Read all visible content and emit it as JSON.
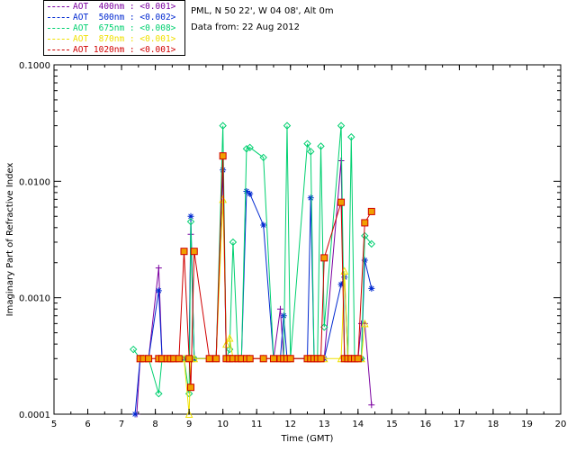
{
  "legend": [
    {
      "label": "AOT  400nm : <0.001>",
      "color": "#7b00a0"
    },
    {
      "label": "AOT  500nm : <0.002>",
      "color": "#0028d0"
    },
    {
      "label": "AOT  675nm : <0.008>",
      "color": "#00d070"
    },
    {
      "label": "AOT  870nm : <0.001>",
      "color": "#f0e000"
    },
    {
      "label": "AOT 1020nm : <0.001>",
      "color": "#d00000"
    }
  ],
  "info": {
    "site": "PML, N 50 22', W 04 08', Alt 0m",
    "date": "Data from: 22 Aug 2012"
  },
  "chart_data": {
    "type": "line",
    "xlabel": "Time (GMT)",
    "ylabel": "Imaginary Part of Refractive Index",
    "xlim": [
      5,
      20
    ],
    "ylim": [
      0.0001,
      0.1
    ],
    "yscale": "log",
    "xticks": [
      "5",
      "6",
      "7",
      "8",
      "9",
      "10",
      "11",
      "12",
      "13",
      "14",
      "15",
      "16",
      "17",
      "18",
      "19",
      "20"
    ],
    "yticks": [
      "0.0001",
      "0.0010",
      "0.0100",
      "0.1000"
    ],
    "series": [
      {
        "name": "AOT 400nm",
        "color": "#7b00a0",
        "marker": "plus",
        "x": [
          7.45,
          7.55,
          7.65,
          7.8,
          8.1,
          8.2,
          8.35,
          8.45,
          8.55,
          8.7,
          8.85,
          9.0,
          9.05,
          9.15,
          9.6,
          9.8,
          10.0,
          10.1,
          10.2,
          10.3,
          10.45,
          10.55,
          10.7,
          10.8,
          11.2,
          11.5,
          11.7,
          11.8,
          11.9,
          12.0,
          12.5,
          12.6,
          12.7,
          12.8,
          12.9,
          13.0,
          13.5,
          13.6,
          13.7,
          13.8,
          13.9,
          14.0,
          14.1,
          14.2,
          14.4
        ],
        "y": [
          0.0001,
          0.0003,
          0.0003,
          0.0003,
          0.0018,
          0.0003,
          0.0003,
          0.0003,
          0.0003,
          0.0003,
          0.0003,
          0.0003,
          0.0035,
          0.0003,
          0.0003,
          0.0003,
          0.016,
          0.0003,
          0.0003,
          0.0003,
          0.0003,
          0.0003,
          0.0003,
          0.0003,
          0.0003,
          0.0003,
          0.0008,
          0.0003,
          0.0003,
          0.0003,
          0.0003,
          0.0003,
          0.0003,
          0.0003,
          0.0003,
          0.0003,
          0.015,
          0.0003,
          0.0003,
          0.0003,
          0.0003,
          0.0003,
          0.0006,
          0.0006,
          0.00012
        ]
      },
      {
        "name": "AOT 500nm",
        "color": "#0028d0",
        "marker": "asterisk",
        "x": [
          7.4,
          7.55,
          7.65,
          7.8,
          8.1,
          8.2,
          8.35,
          8.45,
          8.55,
          8.7,
          8.85,
          9.0,
          9.05,
          9.15,
          9.6,
          9.8,
          10.0,
          10.1,
          10.2,
          10.3,
          10.45,
          10.55,
          10.7,
          10.8,
          11.2,
          11.5,
          11.7,
          11.8,
          11.9,
          12.0,
          12.5,
          12.6,
          12.7,
          12.8,
          12.9,
          13.0,
          13.5,
          13.6,
          13.7,
          13.8,
          13.9,
          14.0,
          14.1,
          14.2,
          14.4
        ],
        "y": [
          0.0001,
          0.0003,
          0.0003,
          0.0003,
          0.00115,
          0.0003,
          0.0003,
          0.0003,
          0.0003,
          0.0003,
          0.0003,
          0.0003,
          0.005,
          0.0003,
          0.0003,
          0.0003,
          0.0125,
          0.0003,
          0.0003,
          0.0003,
          0.0003,
          0.0003,
          0.0082,
          0.0078,
          0.0042,
          0.0003,
          0.0003,
          0.0007,
          0.0003,
          0.0003,
          0.0003,
          0.0072,
          0.0003,
          0.0003,
          0.0003,
          0.0003,
          0.0013,
          0.0015,
          0.0003,
          0.0003,
          0.0003,
          0.0003,
          0.0003,
          0.0021,
          0.0012
        ]
      },
      {
        "name": "AOT 675nm",
        "color": "#00d070",
        "marker": "diamond",
        "x": [
          7.35,
          7.55,
          7.65,
          7.8,
          8.1,
          8.2,
          8.35,
          8.45,
          8.55,
          8.7,
          8.85,
          9.0,
          9.05,
          9.15,
          9.6,
          9.8,
          10.0,
          10.1,
          10.2,
          10.3,
          10.45,
          10.55,
          10.7,
          10.8,
          11.2,
          11.5,
          11.7,
          11.8,
          11.9,
          12.0,
          12.5,
          12.6,
          12.7,
          12.8,
          12.9,
          13.0,
          13.5,
          13.6,
          13.7,
          13.8,
          13.9,
          14.0,
          14.1,
          14.2,
          14.4
        ],
        "y": [
          0.00036,
          0.0003,
          0.0003,
          0.0003,
          0.00015,
          0.0003,
          0.0003,
          0.0003,
          0.0003,
          0.0003,
          0.0003,
          0.00015,
          0.0045,
          0.0003,
          0.0003,
          0.0003,
          0.03,
          0.0003,
          0.00036,
          0.003,
          0.0003,
          0.0003,
          0.019,
          0.0195,
          0.016,
          0.0003,
          0.0003,
          0.0003,
          0.03,
          0.0003,
          0.021,
          0.018,
          0.0003,
          0.0003,
          0.02,
          0.00056,
          0.03,
          0.0003,
          0.0003,
          0.024,
          0.0003,
          0.0003,
          0.0003,
          0.0034,
          0.0029
        ]
      },
      {
        "name": "AOT 870nm",
        "color": "#f0e000",
        "marker": "triangle",
        "x": [
          7.55,
          7.65,
          7.8,
          8.1,
          8.2,
          8.35,
          8.45,
          8.55,
          8.7,
          8.85,
          9.0,
          9.05,
          9.15,
          9.6,
          9.8,
          10.0,
          10.1,
          10.2,
          10.3,
          10.45,
          10.55,
          10.7,
          10.8,
          11.2,
          11.5,
          11.7,
          11.8,
          11.9,
          12.0,
          12.5,
          12.6,
          12.7,
          12.8,
          12.9,
          13.0,
          13.5,
          13.6,
          13.7,
          13.8,
          13.9,
          14.0,
          14.1,
          14.2
        ],
        "y": [
          0.0003,
          0.0003,
          0.0003,
          0.0003,
          0.0003,
          0.0003,
          0.0003,
          0.0003,
          0.0003,
          0.0003,
          0.0001,
          0.0003,
          0.0003,
          0.0003,
          0.0003,
          0.007,
          0.0004,
          0.00045,
          0.0003,
          0.0003,
          0.0003,
          0.0003,
          0.0003,
          0.0003,
          0.0003,
          0.0003,
          0.0003,
          0.0003,
          0.0003,
          0.0003,
          0.0003,
          0.0003,
          0.0003,
          0.0003,
          0.0003,
          0.0003,
          0.0017,
          0.0003,
          0.0003,
          0.0003,
          0.0003,
          0.0003,
          0.0006
        ]
      },
      {
        "name": "AOT 1020nm",
        "color": "#d00000",
        "marker": "square",
        "x": [
          7.55,
          7.65,
          7.8,
          8.1,
          8.2,
          8.35,
          8.45,
          8.55,
          8.7,
          8.85,
          9.0,
          9.05,
          9.15,
          9.6,
          9.8,
          10.0,
          10.1,
          10.2,
          10.3,
          10.45,
          10.55,
          10.7,
          10.8,
          11.2,
          11.5,
          11.7,
          11.8,
          11.9,
          12.0,
          12.5,
          12.6,
          12.7,
          12.8,
          12.9,
          13.0,
          13.5,
          13.6,
          13.7,
          13.8,
          13.9,
          14.0,
          14.2,
          14.4
        ],
        "y": [
          0.0003,
          0.0003,
          0.0003,
          0.0003,
          0.0003,
          0.0003,
          0.0003,
          0.0003,
          0.0003,
          0.0025,
          0.0003,
          0.00017,
          0.0025,
          0.0003,
          0.0003,
          0.0165,
          0.0003,
          0.0003,
          0.0003,
          0.0003,
          0.0003,
          0.0003,
          0.0003,
          0.0003,
          0.0003,
          0.0003,
          0.0003,
          0.0003,
          0.0003,
          0.0003,
          0.0003,
          0.0003,
          0.0003,
          0.0003,
          0.0022,
          0.0066,
          0.0003,
          0.0003,
          0.0003,
          0.0003,
          0.0003,
          0.0044,
          0.0055
        ]
      }
    ]
  }
}
